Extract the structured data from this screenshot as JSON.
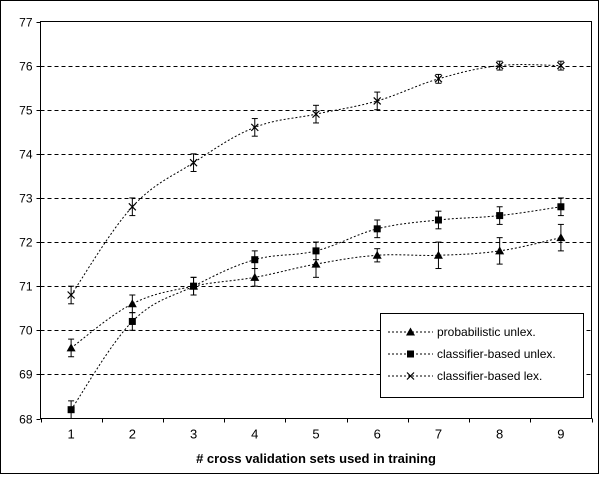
{
  "chart_data": {
    "type": "line",
    "x": [
      1,
      2,
      3,
      4,
      5,
      6,
      7,
      8,
      9
    ],
    "xlabel": "# cross validation sets used in training",
    "ylabel": "",
    "title": "",
    "ylim": [
      68,
      77
    ],
    "yticks": [
      68,
      69,
      70,
      71,
      72,
      73,
      74,
      75,
      76,
      77
    ],
    "xticks": [
      "1",
      "2",
      "3",
      "4",
      "5",
      "6",
      "7",
      "8",
      "9"
    ],
    "grid": "horizontal dashed",
    "legend_position": "bottom-right",
    "series": [
      {
        "name": "probabilistic unlex.",
        "marker": "triangle",
        "values": [
          69.6,
          70.6,
          71.0,
          71.2,
          71.5,
          71.7,
          71.7,
          71.8,
          72.1
        ],
        "err": [
          0.2,
          0.2,
          0.2,
          0.2,
          0.3,
          0.15,
          0.3,
          0.3,
          0.3
        ]
      },
      {
        "name": "classifier-based unlex.",
        "marker": "square",
        "values": [
          68.2,
          70.2,
          71.0,
          71.6,
          71.8,
          72.3,
          72.5,
          72.6,
          72.8
        ],
        "err": [
          0.2,
          0.2,
          0.2,
          0.2,
          0.2,
          0.2,
          0.2,
          0.2,
          0.2
        ]
      },
      {
        "name": "classifier-based lex.",
        "marker": "x",
        "values": [
          70.8,
          72.8,
          73.8,
          74.6,
          74.9,
          75.2,
          75.7,
          76.0,
          76.0
        ],
        "err": [
          0.2,
          0.2,
          0.2,
          0.2,
          0.2,
          0.2,
          0.1,
          0.1,
          0.1
        ]
      }
    ]
  },
  "colors": {
    "line": "#000000",
    "grid": "#000000",
    "background": "#ffffff"
  }
}
